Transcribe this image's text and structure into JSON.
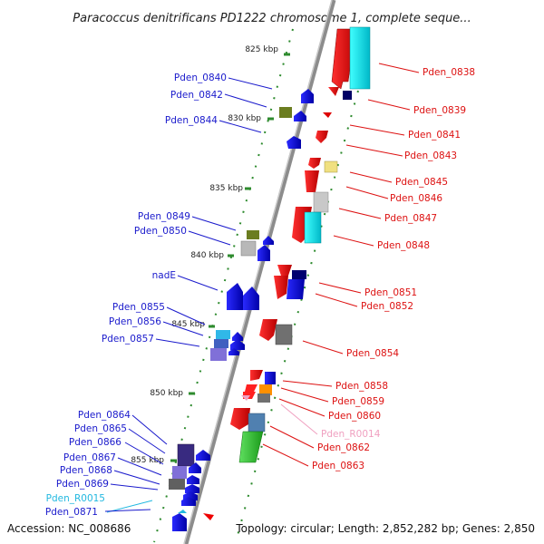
{
  "title": "Paracoccus denitrificans PD1222 chromosome 1, complete seque...",
  "footer": {
    "accession": "Accession: NC_008686",
    "summary": "Topology: circular; Length: 2,852,282 bp; Genes: 2,850"
  },
  "colors": {
    "backbone": "#8c8c8c",
    "tick": "#2e8b2e",
    "left_label": "#1a1acc",
    "right_label": "#dd1111",
    "rna_left": "#22b8e0",
    "rna_right": "#f0a0c0"
  },
  "scale_ticks": [
    {
      "kbp": 825,
      "label": "825 kbp"
    },
    {
      "kbp": 830,
      "label": "830 kbp"
    },
    {
      "kbp": 835,
      "label": "835 kbp"
    },
    {
      "kbp": 840,
      "label": "840 kbp"
    },
    {
      "kbp": 845,
      "label": "845 kbp"
    },
    {
      "kbp": 850,
      "label": "850 kbp"
    },
    {
      "kbp": 855,
      "label": "855 kbp"
    }
  ],
  "left_labels": [
    "Pden_0840",
    "Pden_0842",
    "Pden_0844",
    "Pden_0849",
    "Pden_0850",
    "nadE",
    "Pden_0855",
    "Pden_0856",
    "Pden_0857",
    "Pden_0864",
    "Pden_0865",
    "Pden_0866",
    "Pden_0867",
    "Pden_0868",
    "Pden_0869",
    "Pden_R0015",
    "Pden_0871"
  ],
  "right_labels": [
    "Pden_0838",
    "Pden_0839",
    "Pden_0841",
    "Pden_0843",
    "Pden_0845",
    "Pden_0846",
    "Pden_0847",
    "Pden_0848",
    "Pden_0851",
    "Pden_0852",
    "Pden_0854",
    "Pden_0858",
    "Pden_0859",
    "Pden_0860",
    "Pden_R0014",
    "Pden_0862",
    "Pden_0863"
  ]
}
